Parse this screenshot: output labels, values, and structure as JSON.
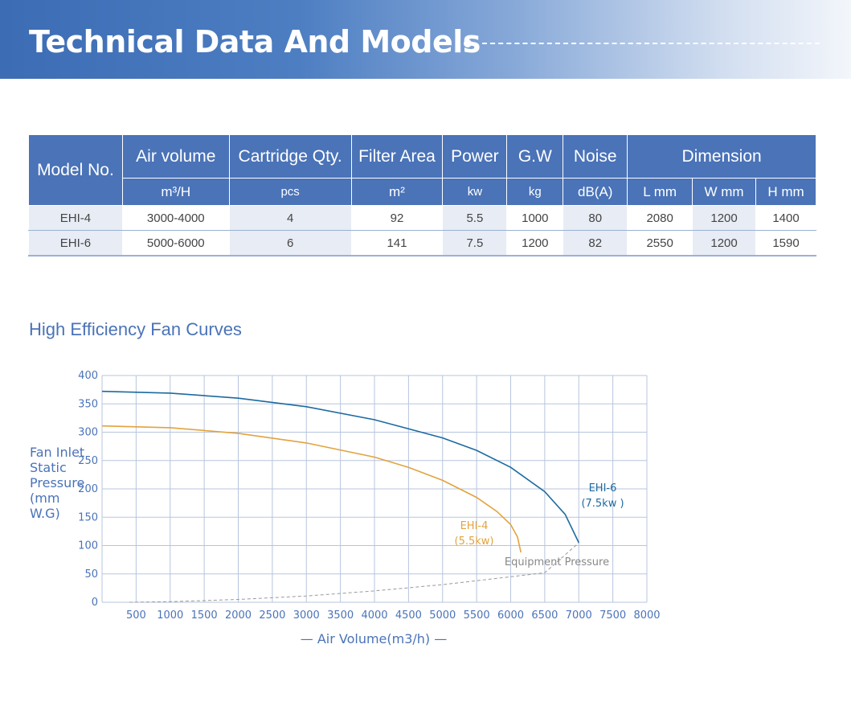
{
  "header": {
    "title": "Technical Data And Models"
  },
  "table": {
    "headers": [
      "Model No.",
      "Air volume",
      "Cartridge Qty.",
      "Filter Area",
      "Power",
      "G.W",
      "Noise",
      "Dimension"
    ],
    "units": [
      "m³/H",
      "pcs",
      "m²",
      "kw",
      "kg",
      "dB(A)",
      "L mm",
      "W  mm",
      "H mm"
    ],
    "rows": [
      [
        "EHI-4",
        "3000-4000",
        "4",
        "92",
        "5.5",
        "1000",
        "80",
        "2080",
        "1200",
        "1400"
      ],
      [
        "EHI-6",
        "5000-6000",
        "6",
        "141",
        "7.5",
        "1200",
        "82",
        "2550",
        "1200",
        "1590"
      ]
    ]
  },
  "chart_title": "High Efficiency Fan Curves",
  "chart_data": {
    "type": "line",
    "ylabel": "Fan Inlet Static Pressure (mm W.G)",
    "xlabel": "— Air Volume(m3/h) —",
    "xlim": [
      0,
      8000
    ],
    "ylim": [
      0,
      400
    ],
    "x_ticks": [
      500,
      1000,
      1500,
      2000,
      2500,
      3000,
      3500,
      4000,
      4500,
      5000,
      5500,
      6000,
      6500,
      7000,
      7500,
      8000
    ],
    "y_ticks": [
      0,
      50,
      100,
      150,
      200,
      250,
      300,
      350,
      400
    ],
    "grid": true,
    "series": [
      {
        "name": "EHI-6",
        "label_lines": [
          "EHI-6",
          "(7.5kw )"
        ],
        "color": "#1d6aa0",
        "x": [
          0,
          1000,
          2000,
          3000,
          4000,
          5000,
          5500,
          6000,
          6500,
          6800,
          7000
        ],
        "y": [
          372,
          369,
          360,
          345,
          322,
          290,
          268,
          238,
          195,
          155,
          105
        ]
      },
      {
        "name": "EHI-4",
        "label_lines": [
          "EHI-4",
          "(5.5kw)"
        ],
        "color": "#e2a33e",
        "x": [
          0,
          1000,
          2000,
          3000,
          4000,
          4500,
          5000,
          5500,
          5800,
          6000,
          6100,
          6150
        ],
        "y": [
          311,
          308,
          298,
          281,
          256,
          238,
          215,
          185,
          160,
          137,
          115,
          88
        ]
      },
      {
        "name": "Equipment Pressure",
        "label_lines": [
          "Equipment Pressure"
        ],
        "color": "#999999",
        "dashed": true,
        "x": [
          400,
          1000,
          2000,
          3000,
          4000,
          5000,
          6000,
          6500,
          7000
        ],
        "y": [
          0,
          1,
          5,
          11,
          20,
          31,
          45,
          52,
          105
        ]
      }
    ]
  }
}
